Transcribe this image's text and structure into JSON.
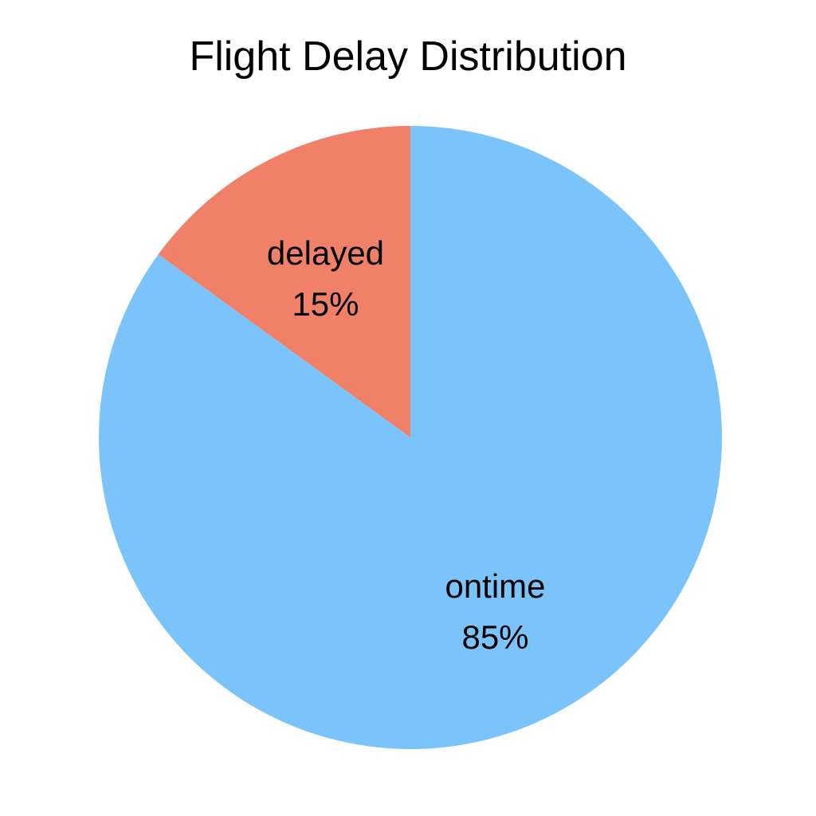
{
  "chart_data": {
    "type": "pie",
    "title": "Flight Delay Distribution",
    "slices": [
      {
        "label": "ontime",
        "value": 85,
        "value_label": "85%",
        "color": "#7ac4fb"
      },
      {
        "label": "delayed",
        "value": 15,
        "value_label": "15%",
        "color": "#f08068"
      }
    ]
  }
}
